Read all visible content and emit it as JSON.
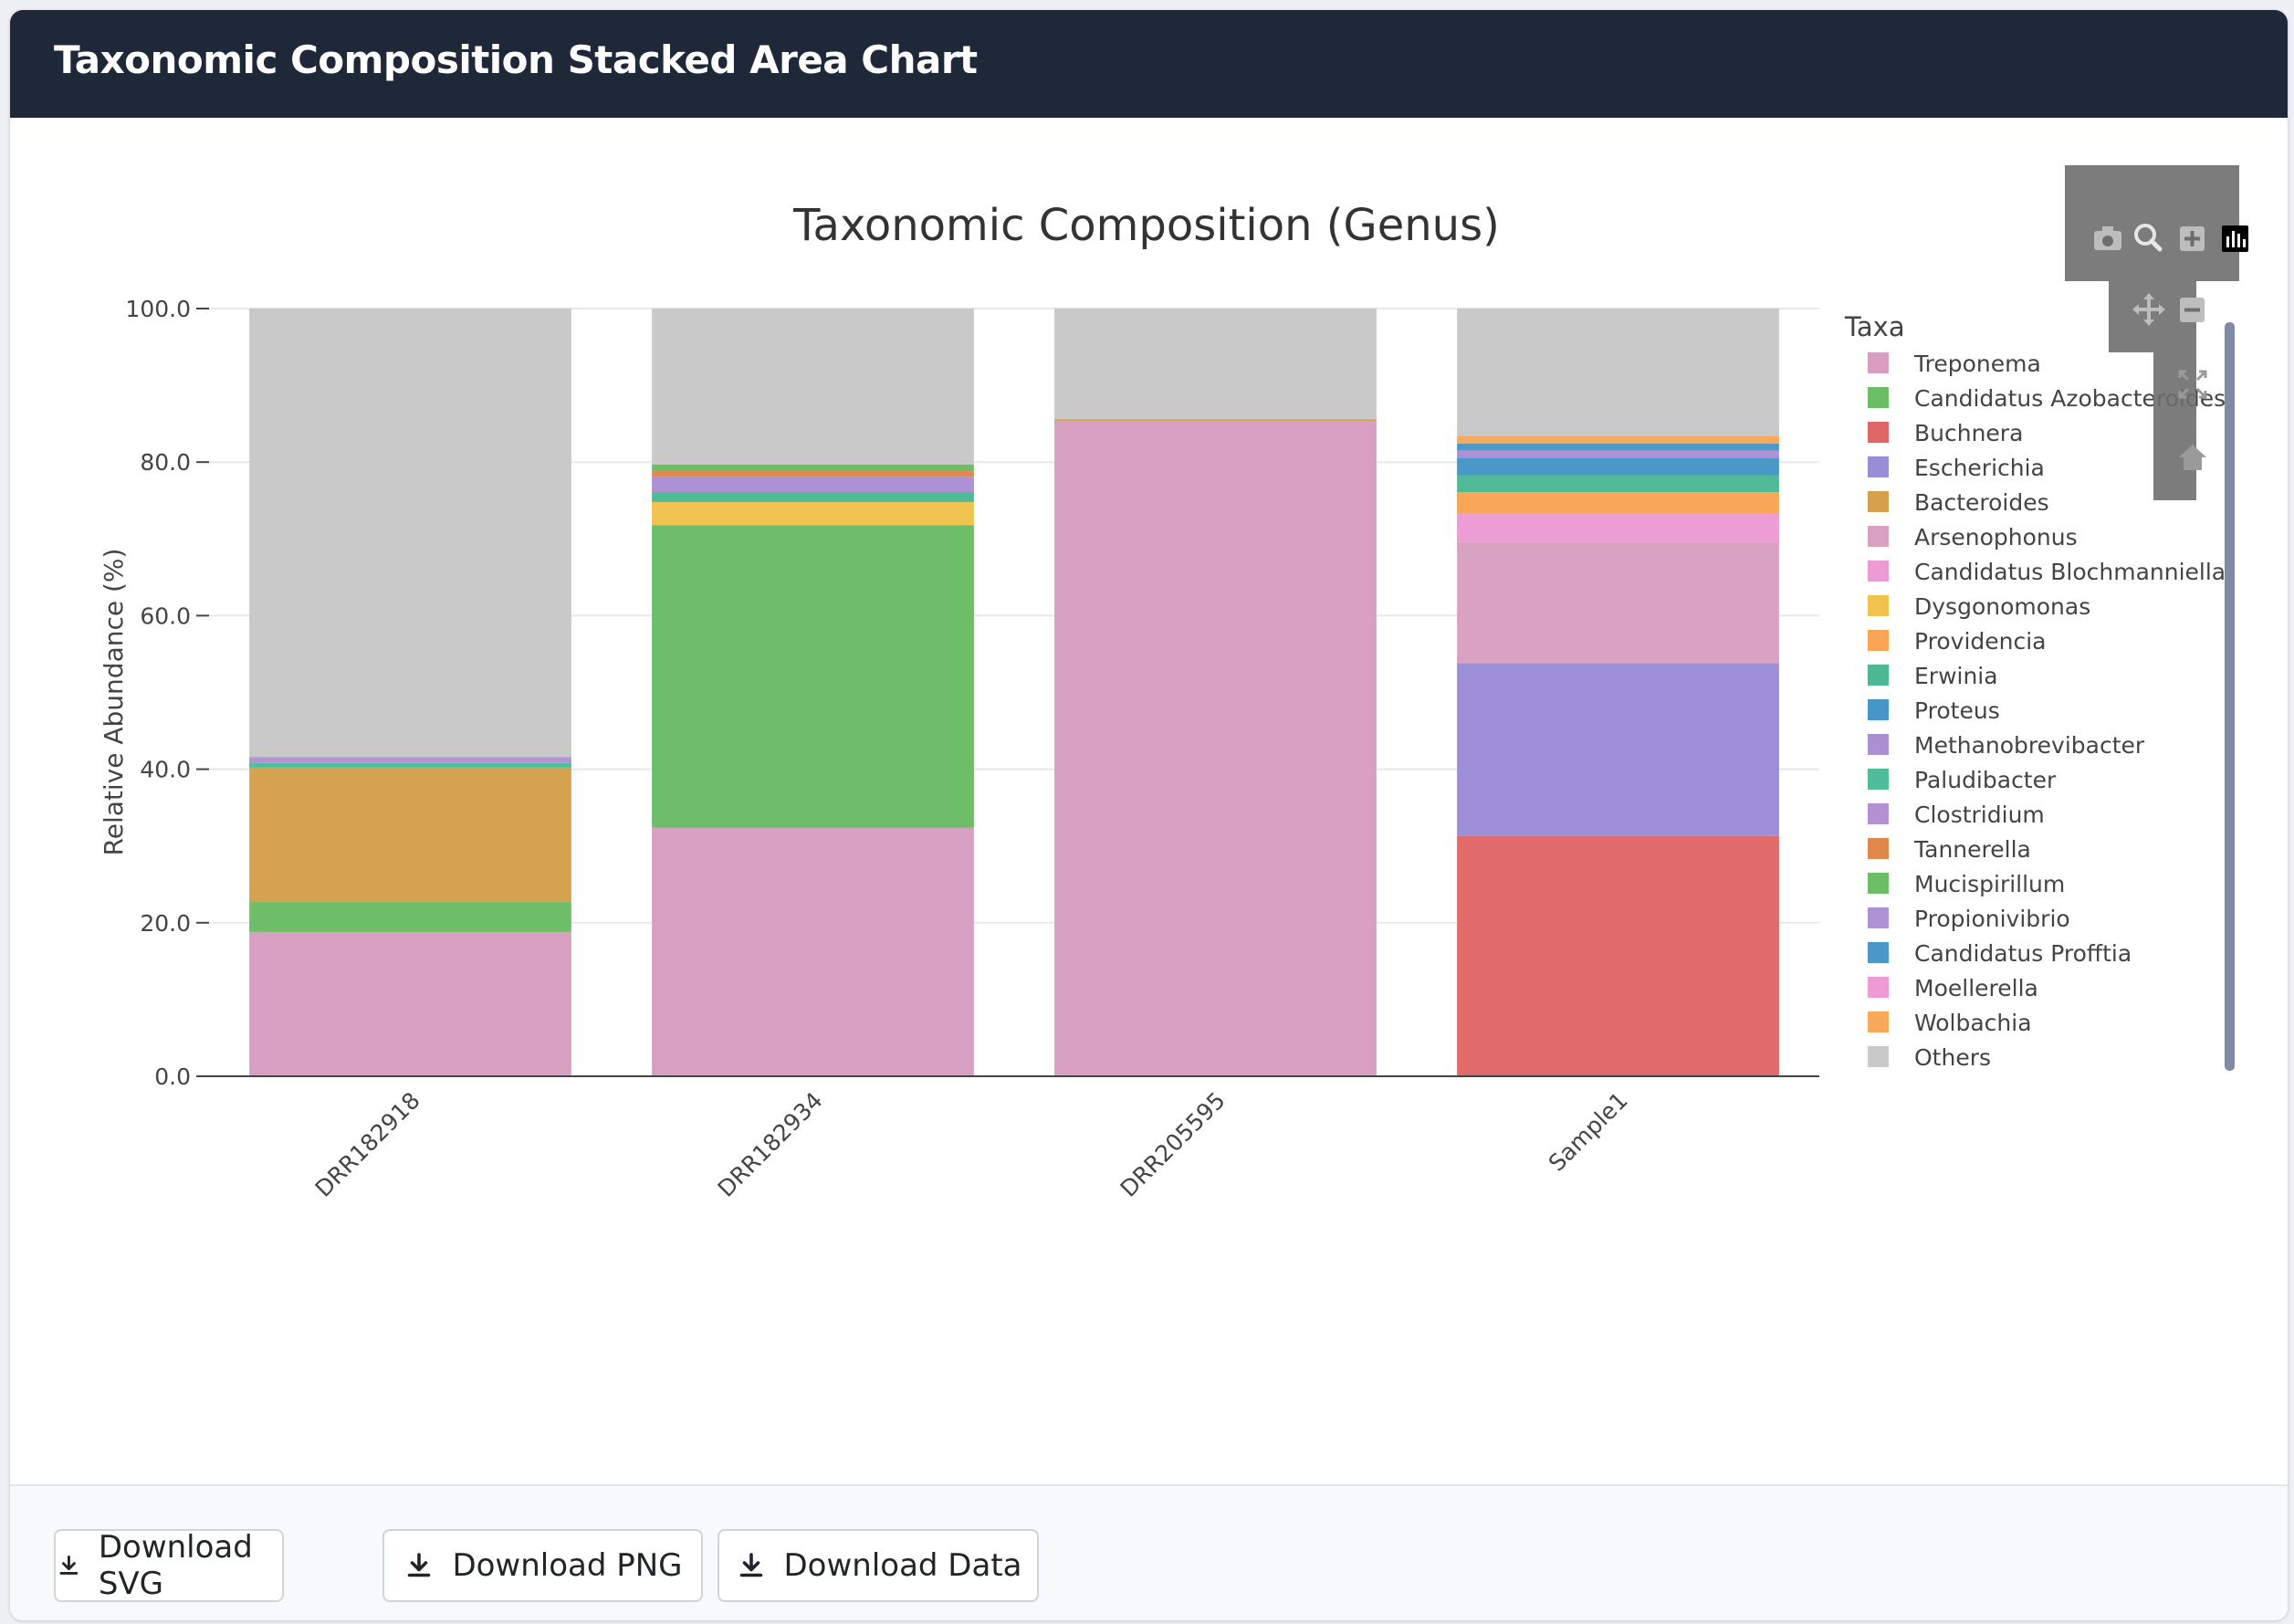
{
  "header": {
    "title": "Taxonomic Composition Stacked Area Chart"
  },
  "footer": {
    "buttons": [
      {
        "label": "Download SVG",
        "icon": "download-icon"
      },
      {
        "label": "Download PNG",
        "icon": "download-icon"
      },
      {
        "label": "Download Data",
        "icon": "download-icon"
      }
    ]
  },
  "modebar": {
    "icons": [
      "camera-icon",
      "zoom-icon",
      "zoom-in-icon",
      "bar-chart-icon",
      "pan-icon",
      "zoom-out-icon",
      "autoscale-icon",
      "home-icon"
    ]
  },
  "chart_data": {
    "type": "bar",
    "title": "Taxonomic Composition (Genus)",
    "xlabel": "",
    "ylabel": "Relative Abundance (%)",
    "ylim": [
      0,
      100
    ],
    "yticks": [
      "0.0",
      "20.0",
      "40.0",
      "60.0",
      "80.0",
      "100.0"
    ],
    "categories": [
      "DRR182918",
      "DRR182934",
      "DRR205595",
      "Sample1"
    ],
    "legend_title": "Taxa",
    "legend_position": "right",
    "grid": true,
    "series": [
      {
        "name": "Treponema",
        "color": "#d79ebf",
        "values": [
          18.8,
          32.4,
          85.3,
          0
        ]
      },
      {
        "name": "Candidatus Azobacteroides",
        "color": "#6bbd66",
        "values": [
          3.9,
          39.4,
          0,
          0
        ]
      },
      {
        "name": "Buchnera",
        "color": "#e06767",
        "values": [
          0,
          0,
          0,
          31.3
        ]
      },
      {
        "name": "Escherichia",
        "color": "#9a8dd7",
        "values": [
          0,
          0,
          0,
          22.5
        ]
      },
      {
        "name": "Bacteroides",
        "color": "#d4a04c",
        "values": [
          17.5,
          0,
          0.3,
          0
        ]
      },
      {
        "name": "Arsenophonus",
        "color": "#d9a0c1",
        "values": [
          0,
          0,
          0,
          15.8
        ]
      },
      {
        "name": "Candidatus Blochmanniella",
        "color": "#ed9bd5",
        "values": [
          0,
          0,
          0,
          3.7
        ]
      },
      {
        "name": "Dysgonomonas",
        "color": "#f1c24e",
        "values": [
          0,
          3.0,
          0,
          0
        ]
      },
      {
        "name": "Providencia",
        "color": "#f8a454",
        "values": [
          0,
          0,
          0,
          2.8
        ]
      },
      {
        "name": "Erwinia",
        "color": "#4cb894",
        "values": [
          0,
          1.3,
          0,
          2.2
        ]
      },
      {
        "name": "Proteus",
        "color": "#4696c7",
        "values": [
          0,
          0,
          0,
          2.2
        ]
      },
      {
        "name": "Methanobrevibacter",
        "color": "#ab8fd3",
        "values": [
          0,
          2.0,
          0,
          1.0
        ]
      },
      {
        "name": "Paludibacter",
        "color": "#4fbd9a",
        "values": [
          0.6,
          0,
          0,
          0
        ]
      },
      {
        "name": "Clostridium",
        "color": "#b391d2",
        "values": [
          0.8,
          0,
          0,
          0
        ]
      },
      {
        "name": "Tannerella",
        "color": "#e0884a",
        "values": [
          0,
          0.8,
          0,
          0
        ]
      },
      {
        "name": "Mucispirillum",
        "color": "#6bbd66",
        "values": [
          0,
          0.8,
          0,
          0
        ]
      },
      {
        "name": "Propionivibrio",
        "color": "#ad92d4",
        "values": [
          0,
          0,
          0,
          0
        ]
      },
      {
        "name": "Candidatus Profftia",
        "color": "#4b97c7",
        "values": [
          0,
          0,
          0,
          0.9
        ]
      },
      {
        "name": "Moellerella",
        "color": "#ee9ad4",
        "values": [
          0,
          0,
          0,
          0
        ]
      },
      {
        "name": "Wolbachia",
        "color": "#f8a859",
        "values": [
          0,
          0,
          0,
          1.0
        ]
      },
      {
        "name": "Others",
        "color": "#c8c8c8",
        "values": [
          58.4,
          20.3,
          14.4,
          16.6
        ]
      }
    ]
  }
}
